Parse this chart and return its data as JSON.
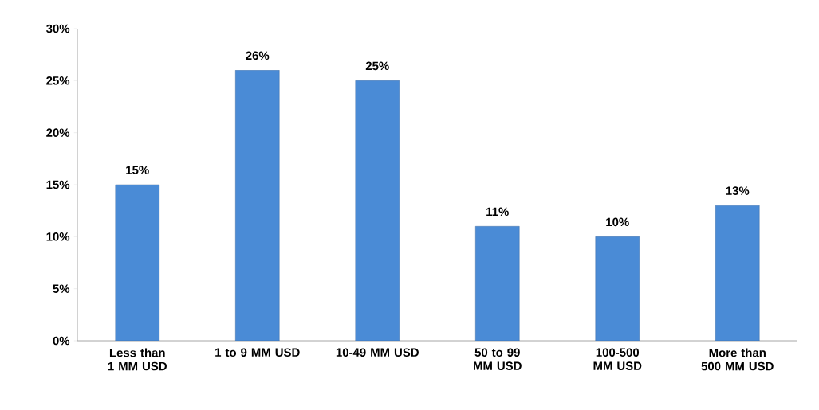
{
  "chart_data": {
    "type": "bar",
    "categories": [
      "Less than 1 MM USD",
      "1 to 9 MM USD",
      "10-49 MM USD",
      "50 to 99 MM USD",
      "100-500 MM USD",
      "More than 500 MM USD"
    ],
    "values": [
      15,
      26,
      25,
      11,
      10,
      13
    ],
    "value_labels": [
      "15%",
      "26%",
      "25%",
      "11%",
      "10%",
      "13%"
    ],
    "color": "#4a8bd6",
    "ylim": [
      0,
      30
    ],
    "yticks": [
      {
        "value": 0,
        "label": "0%"
      },
      {
        "value": 5,
        "label": "5%"
      },
      {
        "value": 10,
        "label": "10%"
      },
      {
        "value": 15,
        "label": "15%"
      },
      {
        "value": 20,
        "label": "20%"
      },
      {
        "value": 25,
        "label": "25%"
      },
      {
        "value": 30,
        "label": "30%"
      }
    ],
    "grid": false
  }
}
